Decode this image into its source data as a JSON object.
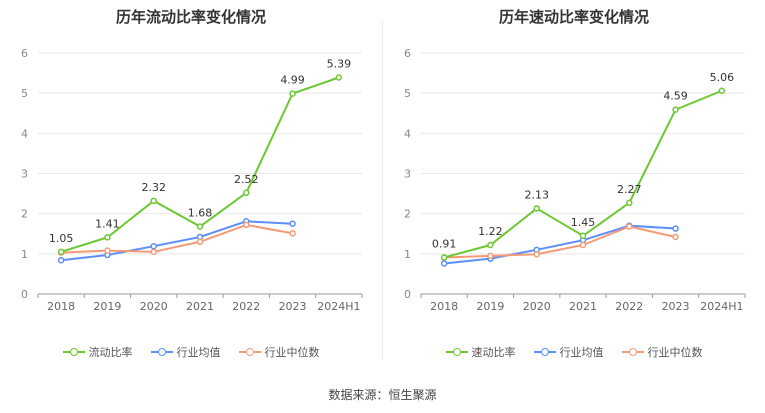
{
  "chart_data": [
    {
      "type": "line",
      "title": "历年流动比率变化情况",
      "categories": [
        "2018",
        "2019",
        "2020",
        "2021",
        "2022",
        "2023",
        "2024H1"
      ],
      "ylim": [
        0,
        6
      ],
      "yticks": [
        "0",
        "1",
        "2",
        "3",
        "4",
        "5",
        "6"
      ],
      "grid": true,
      "legend_position": "bottom",
      "series": [
        {
          "name": "流动比率",
          "color": "#6cc832",
          "values": [
            1.05,
            1.41,
            2.32,
            1.68,
            2.52,
            4.99,
            5.39
          ],
          "labels": [
            "1.05",
            "1.41",
            "2.32",
            "1.68",
            "2.52",
            "4.99",
            "5.39"
          ]
        },
        {
          "name": "行业均值",
          "color": "#5b8ff9",
          "values": [
            0.84,
            0.97,
            1.19,
            1.42,
            1.81,
            1.75,
            null
          ]
        },
        {
          "name": "行业中位数",
          "color": "#f59a76",
          "values": [
            1.03,
            1.08,
            1.05,
            1.3,
            1.72,
            1.51,
            null
          ]
        }
      ]
    },
    {
      "type": "line",
      "title": "历年速动比率变化情况",
      "categories": [
        "2018",
        "2019",
        "2020",
        "2021",
        "2022",
        "2023",
        "2024H1"
      ],
      "ylim": [
        0,
        6
      ],
      "yticks": [
        "0",
        "1",
        "2",
        "3",
        "4",
        "5",
        "6"
      ],
      "grid": true,
      "legend_position": "bottom",
      "series": [
        {
          "name": "速动比率",
          "color": "#6cc832",
          "values": [
            0.91,
            1.22,
            2.13,
            1.45,
            2.27,
            4.59,
            5.06
          ],
          "labels": [
            "0.91",
            "1.22",
            "2.13",
            "1.45",
            "2.27",
            "4.59",
            "5.06"
          ]
        },
        {
          "name": "行业均值",
          "color": "#5b8ff9",
          "values": [
            0.76,
            0.88,
            1.1,
            1.34,
            1.7,
            1.63,
            null
          ]
        },
        {
          "name": "行业中位数",
          "color": "#f59a76",
          "values": [
            0.91,
            0.95,
            0.99,
            1.22,
            1.68,
            1.42,
            null
          ]
        }
      ]
    }
  ],
  "footer": {
    "source": "数据来源：恒生聚源"
  }
}
